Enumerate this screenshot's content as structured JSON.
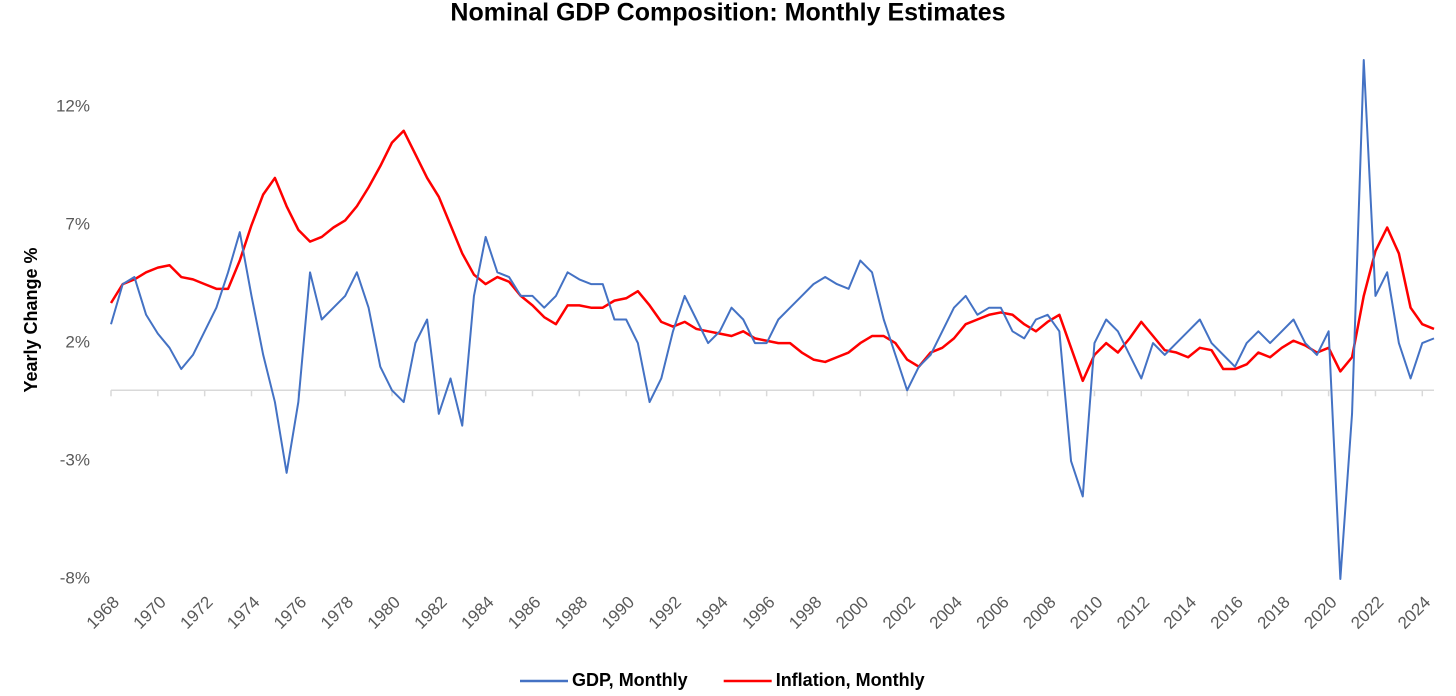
{
  "chart_data": {
    "type": "line",
    "title": "Nominal GDP Composition: Monthly Estimates",
    "y_label": "Yearly Change %",
    "x": [
      1968,
      1968.5,
      1969,
      1969.5,
      1970,
      1970.5,
      1971,
      1971.5,
      1972,
      1972.5,
      1973,
      1973.5,
      1974,
      1974.5,
      1975,
      1975.5,
      1976,
      1976.5,
      1977,
      1977.5,
      1978,
      1978.5,
      1979,
      1979.5,
      1980,
      1980.5,
      1981,
      1981.5,
      1982,
      1982.5,
      1983,
      1983.5,
      1984,
      1984.5,
      1985,
      1985.5,
      1986,
      1986.5,
      1987,
      1987.5,
      1988,
      1988.5,
      1989,
      1989.5,
      1990,
      1990.5,
      1991,
      1991.5,
      1992,
      1992.5,
      1993,
      1993.5,
      1994,
      1994.5,
      1995,
      1995.5,
      1996,
      1996.5,
      1997,
      1997.5,
      1998,
      1998.5,
      1999,
      1999.5,
      2000,
      2000.5,
      2001,
      2001.5,
      2002,
      2002.5,
      2003,
      2003.5,
      2004,
      2004.5,
      2005,
      2005.5,
      2006,
      2006.5,
      2007,
      2007.5,
      2008,
      2008.5,
      2009,
      2009.5,
      2010,
      2010.5,
      2011,
      2011.5,
      2012,
      2012.5,
      2013,
      2013.5,
      2014,
      2014.5,
      2015,
      2015.5,
      2016,
      2016.5,
      2017,
      2017.5,
      2018,
      2018.5,
      2019,
      2019.5,
      2020,
      2020.5,
      2021,
      2021.5,
      2022,
      2022.5,
      2023,
      2023.5,
      2024,
      2024.5
    ],
    "series": [
      {
        "name": "GDP, Monthly",
        "color": "#4472c4",
        "values": [
          2.8,
          4.5,
          4.8,
          3.2,
          2.4,
          1.8,
          0.9,
          1.5,
          2.5,
          3.5,
          5.0,
          6.7,
          4.0,
          1.5,
          -0.5,
          -3.5,
          -0.5,
          5.0,
          3.0,
          3.5,
          4.0,
          5.0,
          3.5,
          1.0,
          0.0,
          -0.5,
          2.0,
          3.0,
          -1.0,
          0.5,
          -1.5,
          4.0,
          6.5,
          5.0,
          4.8,
          4.0,
          4.0,
          3.5,
          4.0,
          5.0,
          4.7,
          4.5,
          4.5,
          3.0,
          3.0,
          2.0,
          -0.5,
          0.5,
          2.5,
          4.0,
          3.0,
          2.0,
          2.5,
          3.5,
          3.0,
          2.0,
          2.0,
          3.0,
          3.5,
          4.0,
          4.5,
          4.8,
          4.5,
          4.3,
          5.5,
          5.0,
          3.0,
          1.5,
          0.0,
          1.0,
          1.5,
          2.5,
          3.5,
          4.0,
          3.2,
          3.5,
          3.5,
          2.5,
          2.2,
          3.0,
          3.2,
          2.5,
          -3.0,
          -4.5,
          2.0,
          3.0,
          2.5,
          1.5,
          0.5,
          2.0,
          1.5,
          2.0,
          2.5,
          3.0,
          2.0,
          1.5,
          1.0,
          2.0,
          2.5,
          2.0,
          2.5,
          3.0,
          2.0,
          1.5,
          2.5,
          -8.0,
          -1.0,
          14.0,
          4.0,
          5.0,
          2.0,
          0.5,
          2.0,
          2.2
        ]
      },
      {
        "name": "Inflation, Monthly",
        "color": "#ff0000",
        "values": [
          3.7,
          4.5,
          4.7,
          5.0,
          5.2,
          5.3,
          4.8,
          4.7,
          4.5,
          4.3,
          4.3,
          5.5,
          7.0,
          8.3,
          9.0,
          7.8,
          6.8,
          6.3,
          6.5,
          6.9,
          7.2,
          7.8,
          8.6,
          9.5,
          10.5,
          11.0,
          10.0,
          9.0,
          8.2,
          7.0,
          5.8,
          4.9,
          4.5,
          4.8,
          4.6,
          4.0,
          3.6,
          3.1,
          2.8,
          3.6,
          3.6,
          3.5,
          3.5,
          3.8,
          3.9,
          4.2,
          3.6,
          2.9,
          2.7,
          2.9,
          2.6,
          2.5,
          2.4,
          2.3,
          2.5,
          2.2,
          2.1,
          2.0,
          2.0,
          1.6,
          1.3,
          1.2,
          1.4,
          1.6,
          2.0,
          2.3,
          2.3,
          2.0,
          1.3,
          1.0,
          1.6,
          1.8,
          2.2,
          2.8,
          3.0,
          3.2,
          3.3,
          3.2,
          2.8,
          2.5,
          2.9,
          3.2,
          1.8,
          0.4,
          1.5,
          2.0,
          1.6,
          2.2,
          2.9,
          2.3,
          1.7,
          1.6,
          1.4,
          1.8,
          1.7,
          0.9,
          0.9,
          1.1,
          1.6,
          1.4,
          1.8,
          2.1,
          1.9,
          1.6,
          1.8,
          0.8,
          1.4,
          4.0,
          5.9,
          6.9,
          5.8,
          3.5,
          2.8,
          2.6
        ]
      }
    ],
    "xlim": [
      1968,
      2024.5
    ],
    "xticks": [
      1968,
      1970,
      1972,
      1974,
      1976,
      1978,
      1980,
      1982,
      1984,
      1986,
      1988,
      1990,
      1992,
      1994,
      1996,
      1998,
      2000,
      2002,
      2004,
      2006,
      2008,
      2010,
      2012,
      2014,
      2016,
      2018,
      2020,
      2022,
      2024
    ],
    "ylim": [
      -8,
      14
    ],
    "yticks": [
      {
        "value": -8,
        "label": "-8%"
      },
      {
        "value": -3,
        "label": "-3%"
      },
      {
        "value": 2,
        "label": "2%"
      },
      {
        "value": 7,
        "label": "7%"
      },
      {
        "value": 12,
        "label": "12%"
      }
    ],
    "grid": false,
    "legend": "bottom"
  }
}
